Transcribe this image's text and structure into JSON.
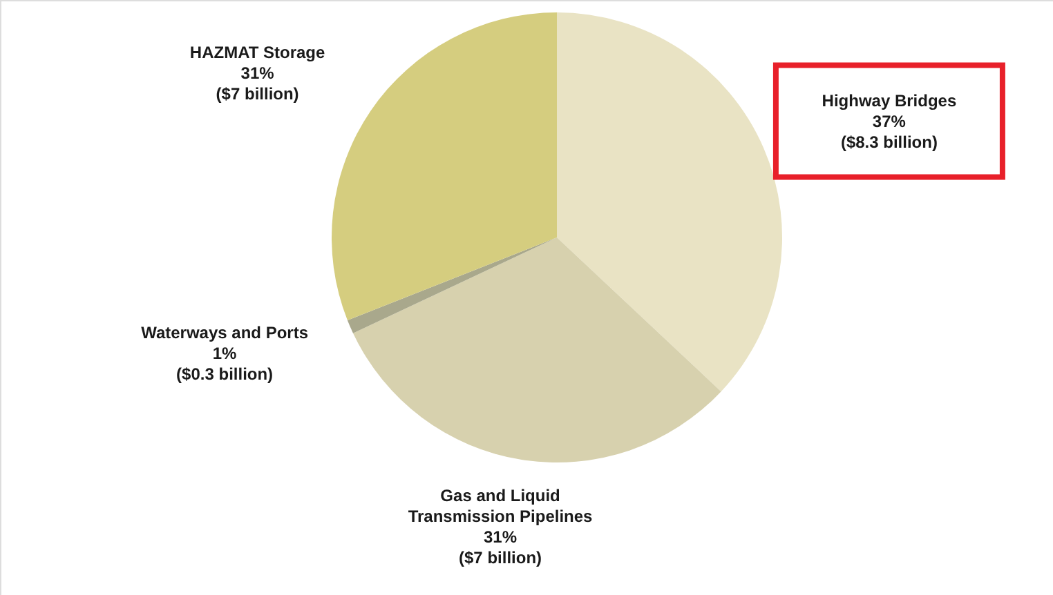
{
  "chart_data": {
    "type": "pie",
    "categories": [
      "Highway Bridges",
      "Gas and Liquid\nTransmission Pipelines",
      "Waterways and Ports",
      "HAZMAT Storage"
    ],
    "values": [
      37,
      31,
      1,
      31
    ],
    "colors": [
      "#e9e3c4",
      "#d7d1ae",
      "#a9a88c",
      "#d5cd7f"
    ],
    "value_labels": [
      "37%\n($8.3 billion)",
      "31%\n($7 billion)",
      "1%\n($0.3 billion)",
      "31%\n($7 billion)"
    ]
  }
}
